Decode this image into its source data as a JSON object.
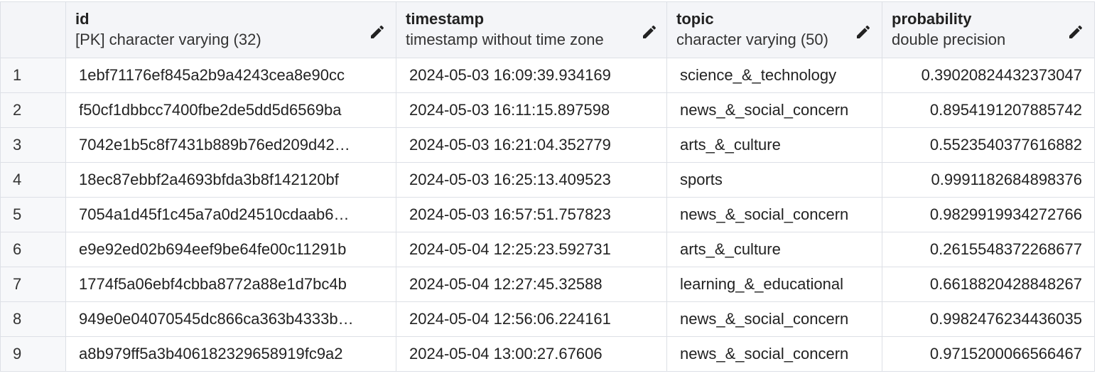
{
  "grid": {
    "columns": [
      {
        "name": "id",
        "type": "[PK] character varying (32)",
        "edit_icon": "pencil-icon"
      },
      {
        "name": "timestamp",
        "type": "timestamp without time zone",
        "edit_icon": "pencil-icon"
      },
      {
        "name": "topic",
        "type": "character varying (50)",
        "edit_icon": "pencil-icon"
      },
      {
        "name": "probability",
        "type": "double precision",
        "edit_icon": "pencil-icon"
      }
    ],
    "rows": [
      {
        "num": "1",
        "id": "1ebf71176ef845a2b9a4243cea8e90cc",
        "timestamp": "2024-05-03 16:09:39.934169",
        "topic": "science_&_technology",
        "probability": "0.39020824432373047"
      },
      {
        "num": "2",
        "id": "f50cf1dbbcc7400fbe2de5dd5d6569ba",
        "timestamp": "2024-05-03 16:11:15.897598",
        "topic": "news_&_social_concern",
        "probability": "0.8954191207885742"
      },
      {
        "num": "3",
        "id": "7042e1b5c8f7431b889b76ed209d42…",
        "timestamp": "2024-05-03 16:21:04.352779",
        "topic": "arts_&_culture",
        "probability": "0.5523540377616882"
      },
      {
        "num": "4",
        "id": "18ec87ebbf2a4693bfda3b8f142120bf",
        "timestamp": "2024-05-03 16:25:13.409523",
        "topic": "sports",
        "probability": "0.9991182684898376"
      },
      {
        "num": "5",
        "id": "7054a1d45f1c45a7a0d24510cdaab6…",
        "timestamp": "2024-05-03 16:57:51.757823",
        "topic": "news_&_social_concern",
        "probability": "0.9829919934272766"
      },
      {
        "num": "6",
        "id": "e9e92ed02b694eef9be64fe00c11291b",
        "timestamp": "2024-05-04 12:25:23.592731",
        "topic": "arts_&_culture",
        "probability": "0.2615548372268677"
      },
      {
        "num": "7",
        "id": "1774f5a06ebf4cbba8772a88e1d7bc4b",
        "timestamp": "2024-05-04 12:27:45.32588",
        "topic": "learning_&_educational",
        "probability": "0.6618820428848267"
      },
      {
        "num": "8",
        "id": "949e0e04070545dc866ca363b4333b…",
        "timestamp": "2024-05-04 12:56:06.224161",
        "topic": "news_&_social_concern",
        "probability": "0.9982476234436035"
      },
      {
        "num": "9",
        "id": "a8b979ff5a3b406182329658919fc9a2",
        "timestamp": "2024-05-04 13:00:27.67606",
        "topic": "news_&_social_concern",
        "probability": "0.9715200066566467"
      }
    ]
  }
}
